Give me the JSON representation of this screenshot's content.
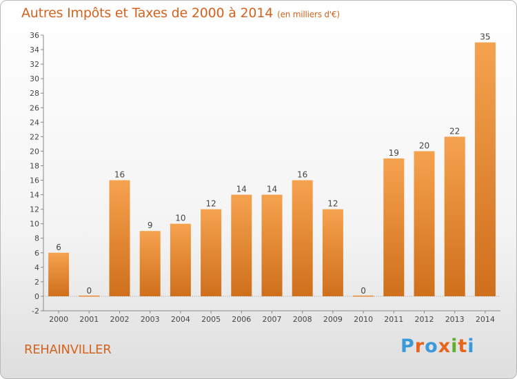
{
  "header": {
    "title": "Autres Impôts et Taxes de 2000 à 2014",
    "unit": "(en milliers d'€)"
  },
  "footer": {
    "commune": "REHAINVILLER",
    "logo": {
      "letters": [
        "P",
        "r",
        "o",
        "x",
        "i",
        "t",
        "i"
      ],
      "colors": [
        "#3a9ad9",
        "#e8641a",
        "#3a9ad9",
        "#e8641a",
        "#5fae2e",
        "#e8641a",
        "#3a9ad9"
      ]
    }
  },
  "chart_data": {
    "type": "bar",
    "categories": [
      "2000",
      "2001",
      "2002",
      "2003",
      "2004",
      "2005",
      "2006",
      "2007",
      "2008",
      "2009",
      "2010",
      "2011",
      "2012",
      "2013",
      "2014"
    ],
    "values": [
      6,
      0,
      16,
      9,
      10,
      12,
      14,
      14,
      16,
      12,
      0,
      19,
      20,
      22,
      35
    ],
    "ylim": [
      -2,
      36
    ],
    "yticks": [
      -2,
      0,
      2,
      4,
      6,
      8,
      10,
      12,
      14,
      16,
      18,
      20,
      22,
      24,
      26,
      28,
      30,
      32,
      34,
      36
    ],
    "grid": false,
    "bar_color": "#e88a30",
    "text_color": "#d4621f"
  }
}
